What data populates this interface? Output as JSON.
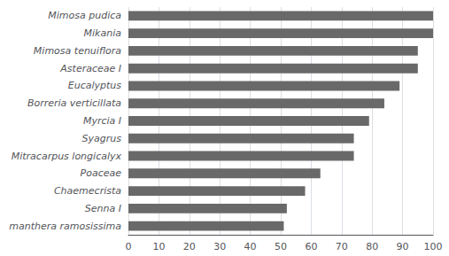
{
  "chart_data": {
    "type": "bar",
    "orientation": "horizontal",
    "categories": [
      "Mimosa pudica",
      "Mikania",
      "Mimosa tenuiflora",
      "Asteraceae I",
      "Eucalyptus",
      "Borreria verticillata",
      "Myrcia I",
      "Syagrus",
      "Mitracarpus longicalyx",
      "Poaceae",
      "Chaemecrista",
      "Senna I",
      "manthera ramosissima"
    ],
    "values": [
      100,
      100,
      95,
      95,
      89,
      84,
      79,
      74,
      74,
      63,
      58,
      52,
      51
    ],
    "color": "#696969",
    "xlim": [
      0,
      100
    ],
    "xticks": [
      0,
      10,
      20,
      30,
      40,
      50,
      60,
      70,
      80,
      90,
      100
    ],
    "grid": true
  }
}
